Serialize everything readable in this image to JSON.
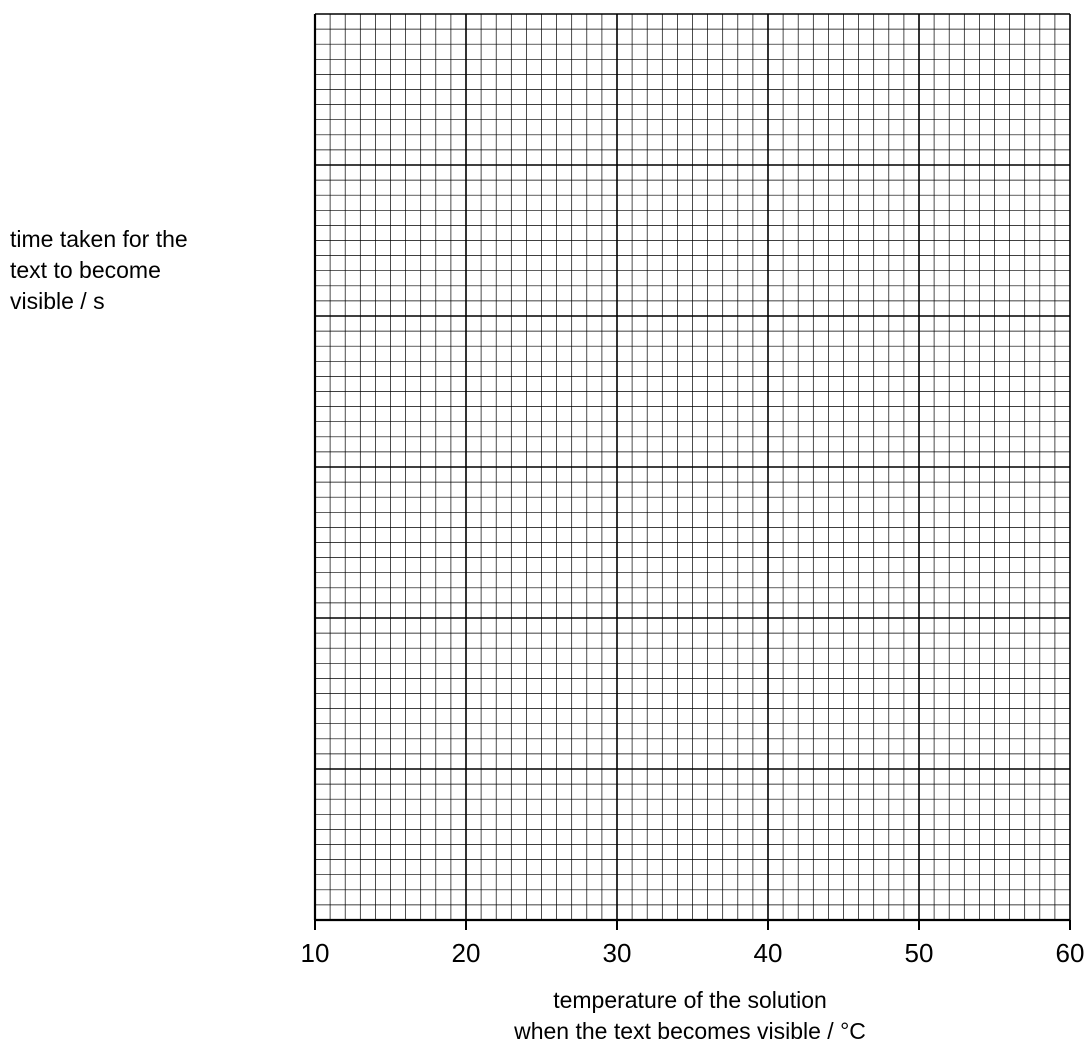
{
  "chart_data": {
    "type": "scatter",
    "title": "",
    "xlabel": "temperature of the solution when the text becomes visible / °C",
    "ylabel": "time taken for the text to become visible / s",
    "xlabel_lines": [
      "temperature of the solution",
      "when the text becomes visible / °C"
    ],
    "ylabel_lines": [
      "time taken for the",
      "text to become",
      "visible / s"
    ],
    "xlim": [
      10,
      60
    ],
    "x_ticks": [
      10,
      20,
      30,
      40,
      50,
      60
    ],
    "x_tick_labels": [
      "10",
      "20",
      "30",
      "40",
      "50",
      "60"
    ],
    "y_ticks": [],
    "grid": true,
    "grid_minor_per_major": 10,
    "x_major_divisions": 5,
    "y_major_divisions": 6,
    "series": [],
    "colors": {
      "grid": "#000000",
      "background": "#ffffff"
    }
  }
}
